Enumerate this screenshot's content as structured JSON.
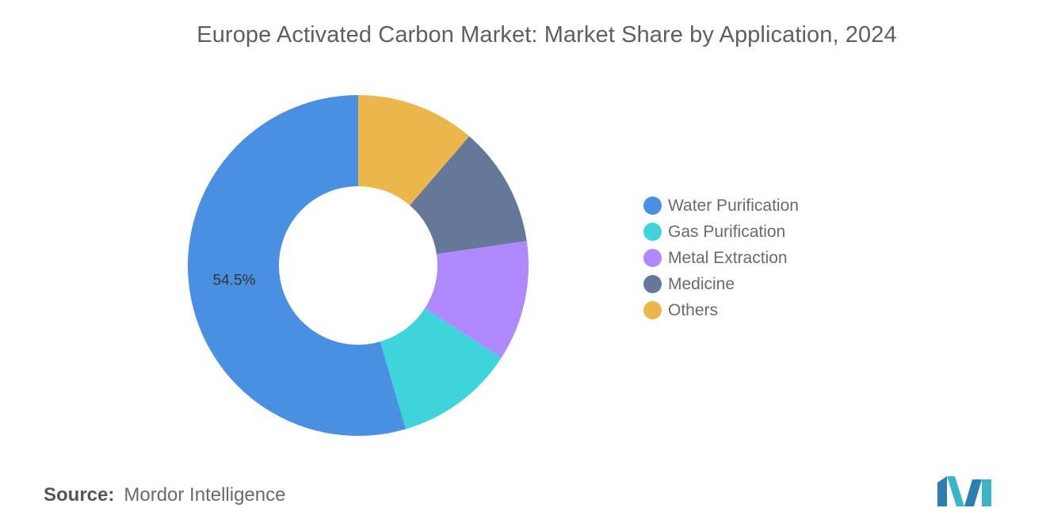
{
  "title": "Europe Activated Carbon Market: Market Share by Application, 2024",
  "chart_data": {
    "type": "pie",
    "donut": true,
    "title": "Europe Activated Carbon Market: Market Share by Application, 2024",
    "categories": [
      "Water Purification",
      "Gas Purification",
      "Metal Extraction",
      "Medicine",
      "Others"
    ],
    "values": [
      54.5,
      11.4,
      11.4,
      11.4,
      11.3
    ],
    "data_labels": [
      "54.5%",
      "",
      "",
      "",
      ""
    ],
    "colors": [
      "#4a90e2",
      "#3fd3dc",
      "#b088ff",
      "#66789a",
      "#ebb74a"
    ],
    "legend_position": "right"
  },
  "source": {
    "label": "Source:",
    "text": "Mordor Intelligence"
  },
  "logo_icon": "mordor-intelligence-logo"
}
